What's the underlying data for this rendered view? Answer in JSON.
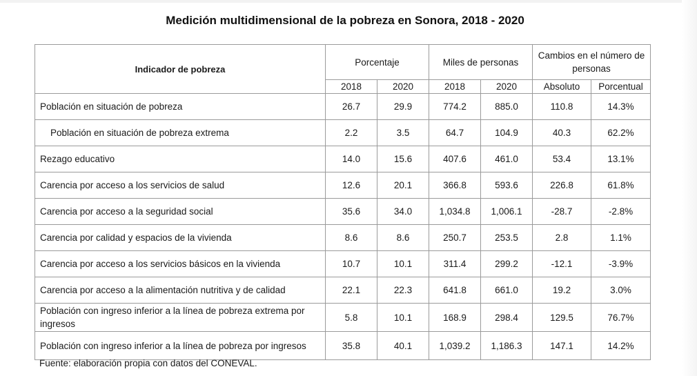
{
  "title": "Medición multidimensional de la pobreza en Sonora, 2018 - 2020",
  "table": {
    "indicator_header": "Indicador de pobreza",
    "groups": [
      {
        "label": "Porcentaje",
        "years": [
          "2018",
          "2020"
        ]
      },
      {
        "label": "Miles de personas",
        "years": [
          "2018",
          "2020"
        ]
      },
      {
        "label": "Cambios en el número de personas",
        "years": [
          "Absoluto",
          "Porcentual"
        ]
      }
    ],
    "rows": [
      {
        "label": "Población en situación de pobreza",
        "values": [
          "26.7",
          "29.9",
          "774.2",
          "885.0",
          "110.8",
          "14.3%"
        ]
      },
      {
        "label": "Población en situación de pobreza extrema",
        "values": [
          "2.2",
          "3.5",
          "64.7",
          "104.9",
          "40.3",
          "62.2%"
        ]
      },
      {
        "label": "Rezago educativo",
        "values": [
          "14.0",
          "15.6",
          "407.6",
          "461.0",
          "53.4",
          "13.1%"
        ]
      },
      {
        "label": "Carencia por acceso a los servicios de salud",
        "values": [
          "12.6",
          "20.1",
          "366.8",
          "593.6",
          "226.8",
          "61.8%"
        ]
      },
      {
        "label": "Carencia por acceso a la seguridad social",
        "values": [
          "35.6",
          "34.0",
          "1,034.8",
          "1,006.1",
          "-28.7",
          "-2.8%"
        ]
      },
      {
        "label": "Carencia por calidad y espacios de la vivienda",
        "values": [
          "8.6",
          "8.6",
          "250.7",
          "253.5",
          "2.8",
          "1.1%"
        ]
      },
      {
        "label": "Carencia por acceso a los servicios básicos en la vivienda",
        "values": [
          "10.7",
          "10.1",
          "311.4",
          "299.2",
          "-12.1",
          "-3.9%"
        ]
      },
      {
        "label": "Carencia por acceso a la alimentación nutritiva y de calidad",
        "values": [
          "22.1",
          "22.3",
          "641.8",
          "661.0",
          "19.2",
          "3.0%"
        ]
      },
      {
        "label": "Población con ingreso inferior a la línea de pobreza extrema por ingresos",
        "values": [
          "5.8",
          "10.1",
          "168.9",
          "298.4",
          "129.5",
          "76.7%"
        ]
      },
      {
        "label": "Población con ingreso inferior a la línea de pobreza por ingresos",
        "values": [
          "35.8",
          "40.1",
          "1,039.2",
          "1,186.3",
          "147.1",
          "14.2%"
        ]
      }
    ]
  },
  "source": "Fuente: elaboración propia con datos del CONEVAL."
}
